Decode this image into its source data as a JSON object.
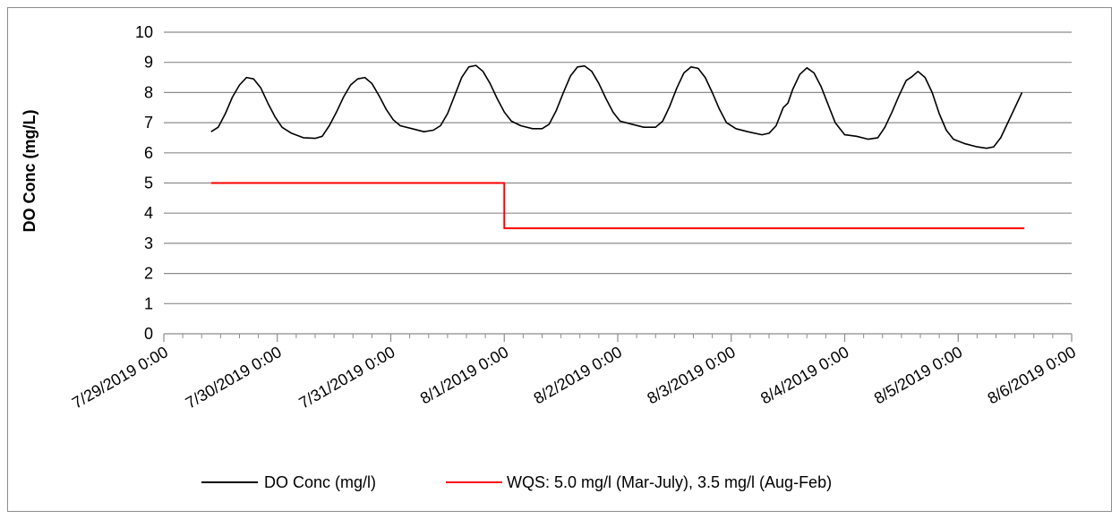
{
  "chart_data": {
    "type": "line",
    "title": "",
    "xlabel": "",
    "ylabel": "DO Conc (mg/L)",
    "ylim": [
      0,
      10
    ],
    "y_ticks": [
      0,
      1,
      2,
      3,
      4,
      5,
      6,
      7,
      8,
      9,
      10
    ],
    "x_range_days": [
      "7/29/2019 0:00",
      "8/6/2019 0:00"
    ],
    "x_tick_labels": [
      "7/29/2019 0:00",
      "7/30/2019 0:00",
      "7/31/2019 0:00",
      "8/1/2019 0:00",
      "8/2/2019 0:00",
      "8/3/2019 0:00",
      "8/4/2019 0:00",
      "8/5/2019 0:00",
      "8/6/2019 0:00"
    ],
    "grid": "horizontal",
    "legend_position": "bottom",
    "series": [
      {
        "name": "DO Conc (mg/l)",
        "color": "#000000",
        "points": [
          [
            "7/29/2019 10:00",
            6.7
          ],
          [
            "7/29/2019 11:30",
            6.85
          ],
          [
            "7/29/2019 13:00",
            7.3
          ],
          [
            "7/29/2019 14:30",
            7.85
          ],
          [
            "7/29/2019 16:00",
            8.25
          ],
          [
            "7/29/2019 17:30",
            8.5
          ],
          [
            "7/29/2019 19:00",
            8.45
          ],
          [
            "7/29/2019 20:30",
            8.15
          ],
          [
            "7/29/2019 22:00",
            7.65
          ],
          [
            "7/29/2019 23:30",
            7.2
          ],
          [
            "7/30/2019 1:00",
            6.85
          ],
          [
            "7/30/2019 3:00",
            6.65
          ],
          [
            "7/30/2019 5:30",
            6.5
          ],
          [
            "7/30/2019 8:00",
            6.48
          ],
          [
            "7/30/2019 9:30",
            6.55
          ],
          [
            "7/30/2019 11:00",
            6.9
          ],
          [
            "7/30/2019 12:30",
            7.35
          ],
          [
            "7/30/2019 14:00",
            7.85
          ],
          [
            "7/30/2019 15:30",
            8.25
          ],
          [
            "7/30/2019 17:00",
            8.45
          ],
          [
            "7/30/2019 18:30",
            8.5
          ],
          [
            "7/30/2019 20:00",
            8.3
          ],
          [
            "7/30/2019 21:30",
            7.9
          ],
          [
            "7/30/2019 23:00",
            7.45
          ],
          [
            "7/31/2019 0:30",
            7.1
          ],
          [
            "7/31/2019 2:00",
            6.9
          ],
          [
            "7/31/2019 4:30",
            6.8
          ],
          [
            "7/31/2019 7:00",
            6.7
          ],
          [
            "7/31/2019 9:00",
            6.75
          ],
          [
            "7/31/2019 10:30",
            6.9
          ],
          [
            "7/31/2019 12:00",
            7.3
          ],
          [
            "7/31/2019 13:30",
            7.9
          ],
          [
            "7/31/2019 15:00",
            8.5
          ],
          [
            "7/31/2019 16:30",
            8.85
          ],
          [
            "7/31/2019 18:00",
            8.9
          ],
          [
            "7/31/2019 19:30",
            8.7
          ],
          [
            "7/31/2019 21:00",
            8.3
          ],
          [
            "7/31/2019 22:30",
            7.8
          ],
          [
            "8/1/2019 0:00",
            7.35
          ],
          [
            "8/1/2019 1:30",
            7.05
          ],
          [
            "8/1/2019 3:30",
            6.9
          ],
          [
            "8/1/2019 6:00",
            6.8
          ],
          [
            "8/1/2019 8:00",
            6.8
          ],
          [
            "8/1/2019 9:30",
            6.95
          ],
          [
            "8/1/2019 11:00",
            7.4
          ],
          [
            "8/1/2019 12:30",
            8.0
          ],
          [
            "8/1/2019 14:00",
            8.55
          ],
          [
            "8/1/2019 15:30",
            8.85
          ],
          [
            "8/1/2019 17:00",
            8.88
          ],
          [
            "8/1/2019 18:30",
            8.7
          ],
          [
            "8/1/2019 20:00",
            8.3
          ],
          [
            "8/1/2019 21:30",
            7.8
          ],
          [
            "8/1/2019 23:00",
            7.35
          ],
          [
            "8/2/2019 0:30",
            7.05
          ],
          [
            "8/2/2019 3:00",
            6.95
          ],
          [
            "8/2/2019 5:30",
            6.85
          ],
          [
            "8/2/2019 8:00",
            6.85
          ],
          [
            "8/2/2019 9:30",
            7.05
          ],
          [
            "8/2/2019 11:00",
            7.55
          ],
          [
            "8/2/2019 12:30",
            8.15
          ],
          [
            "8/2/2019 14:00",
            8.65
          ],
          [
            "8/2/2019 15:30",
            8.85
          ],
          [
            "8/2/2019 17:00",
            8.8
          ],
          [
            "8/2/2019 18:30",
            8.5
          ],
          [
            "8/2/2019 20:00",
            8.0
          ],
          [
            "8/2/2019 21:30",
            7.45
          ],
          [
            "8/2/2019 23:00",
            7.0
          ],
          [
            "8/3/2019 1:00",
            6.8
          ],
          [
            "8/3/2019 3:30",
            6.7
          ],
          [
            "8/3/2019 6:30",
            6.6
          ],
          [
            "8/3/2019 8:00",
            6.65
          ],
          [
            "8/3/2019 9:30",
            6.9
          ],
          [
            "8/3/2019 11:00",
            7.5
          ],
          [
            "8/3/2019 12:00",
            7.65
          ],
          [
            "8/3/2019 13:00",
            8.1
          ],
          [
            "8/3/2019 14:30",
            8.6
          ],
          [
            "8/3/2019 16:00",
            8.82
          ],
          [
            "8/3/2019 17:30",
            8.65
          ],
          [
            "8/3/2019 19:00",
            8.2
          ],
          [
            "8/3/2019 20:30",
            7.6
          ],
          [
            "8/3/2019 22:00",
            7.0
          ],
          [
            "8/4/2019 0:00",
            6.6
          ],
          [
            "8/4/2019 2:30",
            6.55
          ],
          [
            "8/4/2019 5:00",
            6.45
          ],
          [
            "8/4/2019 7:00",
            6.5
          ],
          [
            "8/4/2019 8:30",
            6.85
          ],
          [
            "8/4/2019 10:00",
            7.35
          ],
          [
            "8/4/2019 11:30",
            7.9
          ],
          [
            "8/4/2019 13:00",
            8.4
          ],
          [
            "8/4/2019 14:00",
            8.5
          ],
          [
            "8/4/2019 15:30",
            8.7
          ],
          [
            "8/4/2019 17:00",
            8.5
          ],
          [
            "8/4/2019 18:30",
            8.0
          ],
          [
            "8/4/2019 20:00",
            7.3
          ],
          [
            "8/4/2019 21:30",
            6.75
          ],
          [
            "8/4/2019 23:00",
            6.45
          ],
          [
            "8/5/2019 1:30",
            6.3
          ],
          [
            "8/5/2019 4:00",
            6.2
          ],
          [
            "8/5/2019 6:00",
            6.15
          ],
          [
            "8/5/2019 7:30",
            6.2
          ],
          [
            "8/5/2019 9:00",
            6.5
          ],
          [
            "8/5/2019 10:30",
            7.0
          ],
          [
            "8/5/2019 12:00",
            7.5
          ],
          [
            "8/5/2019 13:30",
            8.0
          ]
        ]
      },
      {
        "name": "WQS: 5.0 mg/l (Mar-July), 3.5 mg/l (Aug-Feb)",
        "color": "#ff0000",
        "points": [
          [
            "7/29/2019 10:00",
            5.0
          ],
          [
            "8/1/2019 0:00",
            5.0
          ],
          [
            "8/1/2019 0:00",
            3.5
          ],
          [
            "8/5/2019 14:00",
            3.5
          ]
        ]
      }
    ]
  }
}
